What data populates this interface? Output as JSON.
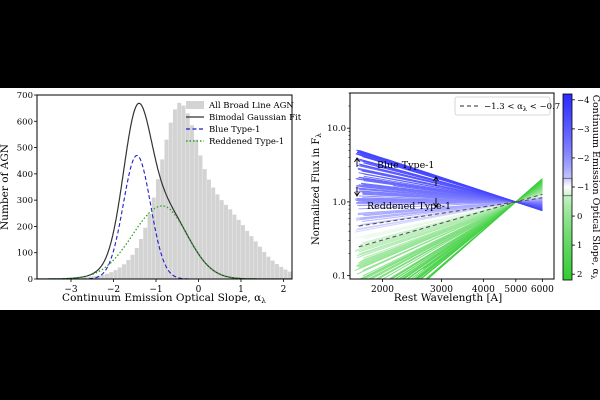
{
  "chart_data": [
    {
      "type": "histogram",
      "title": "",
      "xlabel": "Continuum Emission Optical Slope, α",
      "xlabel_sub": "λ",
      "ylabel": "Number of AGN",
      "xlim": [
        -3.8,
        2.2
      ],
      "ylim": [
        0,
        700
      ],
      "xticks": [
        -3,
        -2,
        -1,
        0,
        1,
        2
      ],
      "xtick_labels": [
        "−3",
        "−2",
        "−1",
        "0",
        "1",
        "2"
      ],
      "yticks": [
        0,
        100,
        200,
        300,
        400,
        500,
        600,
        700
      ],
      "bin_width": 0.1,
      "bins_start": -3.0,
      "hist_values": [
        2,
        3,
        5,
        7,
        9,
        11,
        13,
        16,
        20,
        26,
        34,
        44,
        56,
        72,
        92,
        118,
        152,
        195,
        248,
        310,
        380,
        455,
        530,
        595,
        645,
        670,
        660,
        630,
        585,
        530,
        470,
        418,
        378,
        348,
        322,
        300,
        282,
        265,
        245,
        225,
        205,
        183,
        163,
        143,
        123,
        103,
        85,
        70,
        57,
        46,
        36,
        28,
        22,
        17,
        13,
        10,
        8,
        6,
        5,
        4,
        3,
        2,
        2,
        1,
        1,
        1,
        1,
        0,
        0,
        0
      ],
      "components": [
        {
          "name": "Blue Type-1",
          "amp": 470,
          "mu": -1.45,
          "sigma": 0.32,
          "color": "#1f1fcc",
          "style": "dashed"
        },
        {
          "name": "Reddened Type-1",
          "amp": 278,
          "mu": -0.85,
          "sigma_left": 0.7,
          "sigma_right": 0.58,
          "color": "#2ca02c",
          "style": "dotted"
        }
      ],
      "legend": [
        {
          "label": "All Broad Line AGN",
          "kind": "patch",
          "color": "#d3d3d3"
        },
        {
          "label": "Bimodal Gaussian Fit",
          "kind": "line",
          "color": "#333333"
        },
        {
          "label": "Blue Type-1",
          "kind": "dashed",
          "color": "#1f1fcc"
        },
        {
          "label": "Reddened Type-1",
          "kind": "dotted",
          "color": "#2ca02c"
        }
      ],
      "legend_position": "top-right"
    },
    {
      "type": "line",
      "xscale": "log",
      "yscale": "log",
      "xlabel": "Rest Wavelength [A]",
      "ylabel": "Normalized Flux in F",
      "ylabel_sub": "λ",
      "xlim": [
        1600,
        6500
      ],
      "ylim": [
        0.09,
        30
      ],
      "xticks": [
        2000,
        3000,
        4000,
        5000,
        6000
      ],
      "xtick_labels": [
        "2000",
        "3000",
        "4000",
        "5000",
        "6000"
      ],
      "yticks": [
        0.1,
        1.0,
        10.0
      ],
      "ytick_labels": [
        "0.1",
        "1.0",
        "10.0"
      ],
      "normalization_wavelength": 5000,
      "reference_band_label": "−1.3 < α",
      "reference_band_label_sub": "λ",
      "reference_band_label_end": " < −0.7",
      "reference_band": [
        -1.3,
        -0.7
      ],
      "group_labels": [
        "Blue Type-1",
        "Reddened Type-1"
      ],
      "slope_range": [
        -4.2,
        2.2
      ],
      "slope_clip": [
        -3.5,
        2.0
      ],
      "long_lines": [
        {
          "alpha": -3.1,
          "start": 1700
        },
        {
          "alpha": -3.5,
          "start": 2050
        },
        {
          "alpha": -2.6,
          "start": 2150
        },
        {
          "alpha": 0.9,
          "start": 1850
        },
        {
          "alpha": 0.8,
          "start": 2500
        },
        {
          "alpha": 1.3,
          "start": 2650
        }
      ],
      "colorbar": {
        "label": "Continuum Emission Optical Slope, α",
        "label_sub": "λ",
        "range": [
          -4.2,
          2.2
        ],
        "ticks": [
          -4,
          -3,
          -2,
          -1,
          0,
          1,
          2
        ],
        "tick_labels": [
          "−4",
          "−3",
          "−2",
          "−1",
          "0",
          "1",
          "2"
        ],
        "blue_color": "#2b2bff",
        "green_color": "#33cc33",
        "neutral_color": "#ffffff"
      }
    }
  ]
}
